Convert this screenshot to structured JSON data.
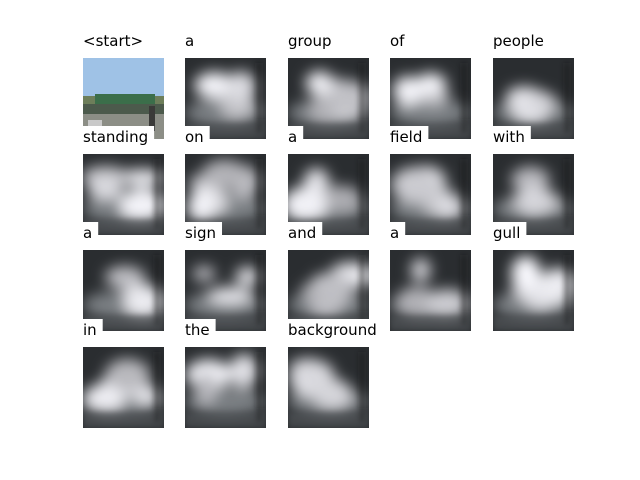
{
  "words": [
    "<start>",
    "a",
    "group",
    "of",
    "people",
    "standing",
    "on",
    "a",
    "field",
    "with",
    "a",
    "sign",
    "and",
    "a",
    "gull",
    "in",
    "the",
    "background"
  ]
}
